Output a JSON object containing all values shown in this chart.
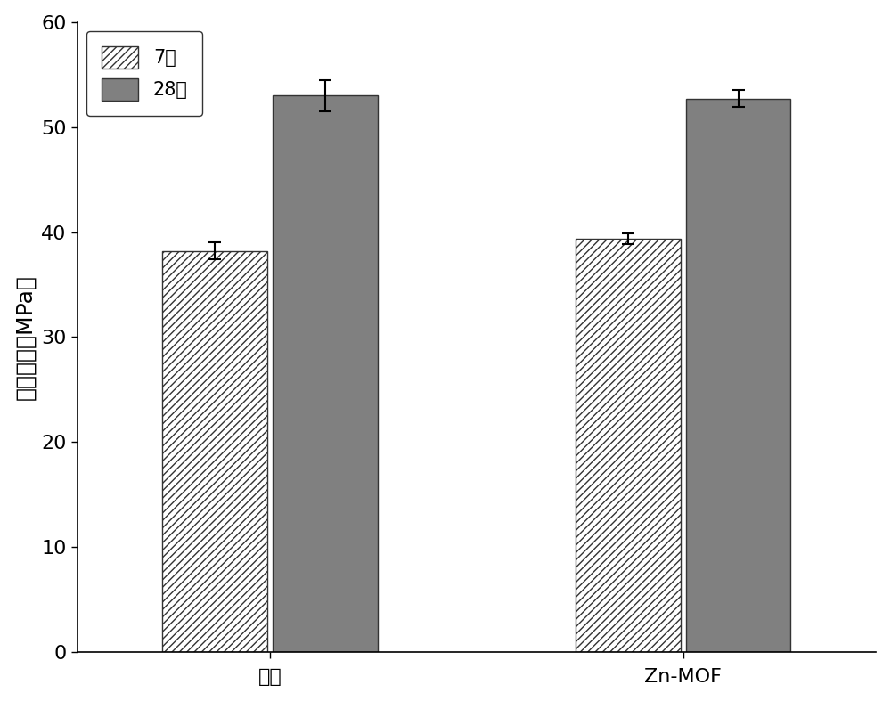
{
  "groups": [
    "空白",
    "Zn-MOF"
  ],
  "series_labels": [
    "7天",
    "28天"
  ],
  "values": [
    [
      38.2,
      53.0
    ],
    [
      39.4,
      52.7
    ]
  ],
  "errors": [
    [
      0.8,
      1.5
    ],
    [
      0.5,
      0.8
    ]
  ],
  "bar_width": 0.38,
  "group_centers": [
    1.0,
    2.5
  ],
  "bar_gap": 0.02,
  "hatch_bar_color": "#ffffff",
  "hatch_bar_edgecolor": "#333333",
  "hatch_pattern": "////",
  "solid_bar_color": "#808080",
  "solid_bar_edgecolor": "#333333",
  "ylabel": "抗压强度（MPa）",
  "ylim": [
    0,
    60
  ],
  "yticks": [
    0,
    10,
    20,
    30,
    40,
    50,
    60
  ],
  "xlim": [
    0.3,
    3.2
  ],
  "background_color": "#ffffff",
  "axis_fontsize": 18,
  "tick_fontsize": 16,
  "legend_fontsize": 15,
  "errorbar_capsize": 5,
  "errorbar_linewidth": 1.5,
  "errorbar_color": "#000000"
}
